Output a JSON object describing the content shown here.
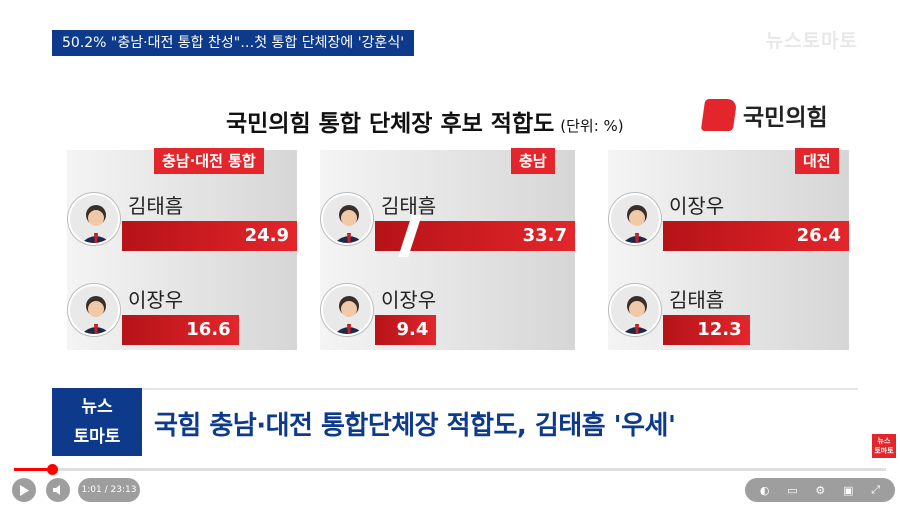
{
  "top_caption": "50.2% \"충남·대전 통합 찬성\"…첫 통합 단체장에 '강훈식'",
  "brand_top": "뉴스토마토",
  "chart_data": [
    {
      "type": "bar",
      "region": "충남·대전 통합",
      "categories": [
        "김태흠",
        "이장우"
      ],
      "values": [
        24.9,
        16.6
      ],
      "value_labels": [
        "24.9",
        "16.6"
      ],
      "title": "국민의힘 통합 단체장 후보 적합도",
      "unit": "(단위: %)"
    },
    {
      "type": "bar",
      "region": "충남",
      "categories": [
        "김태흠",
        "이장우"
      ],
      "values": [
        33.7,
        9.4
      ],
      "value_labels": [
        "33.7",
        "9.4"
      ],
      "broken_axis_first_bar": true
    },
    {
      "type": "bar",
      "region": "대전",
      "categories": [
        "이장우",
        "김태흠"
      ],
      "values": [
        26.4,
        12.3
      ],
      "value_labels": [
        "26.4",
        "12.3"
      ]
    }
  ],
  "party_logo": {
    "name": "국민의힘",
    "color": "#e3262b"
  },
  "lower_third": {
    "logo_line1": "뉴스",
    "logo_line2": "토마토",
    "headline": "국힘 충남·대전 통합단체장 적합도, 김태흠 '우세'"
  },
  "corner_logo": {
    "line1": "뉴스",
    "line2": "토마토"
  },
  "player": {
    "current_time": "1:01",
    "duration": "23:13",
    "time_label": "1:01 / 23:13",
    "progress_fraction": 0.044,
    "icons": [
      "play-icon",
      "volume-icon",
      "autoplay-toggle-icon",
      "subtitles-icon",
      "settings-icon",
      "miniplayer-icon",
      "fullscreen-icon"
    ]
  },
  "colors": {
    "accent_red": "#e3262b",
    "navy": "#0d3a8a"
  }
}
